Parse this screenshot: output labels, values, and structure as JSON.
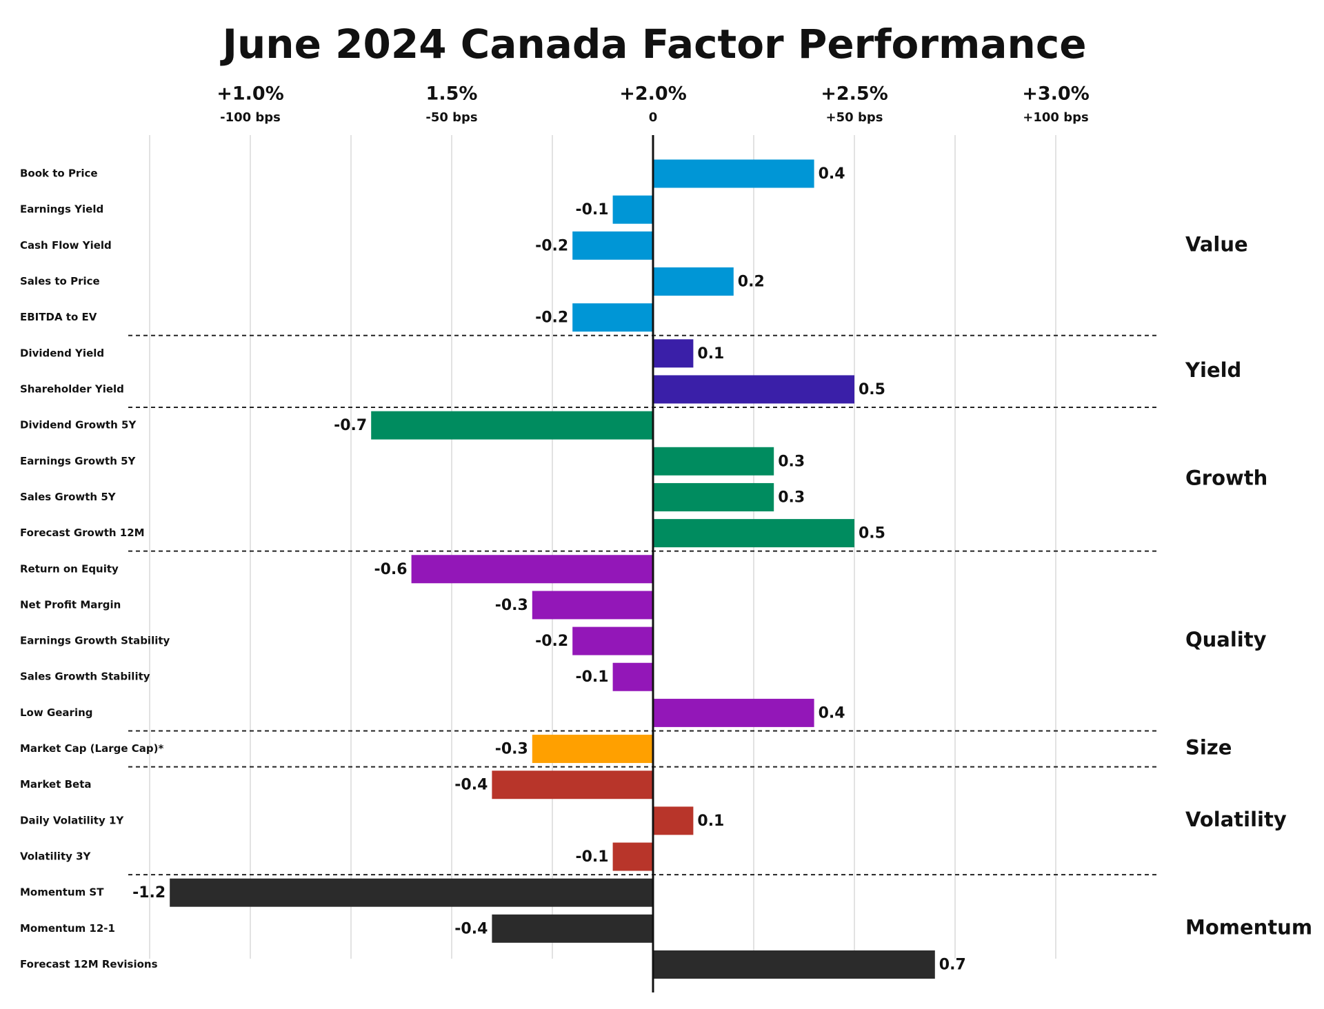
{
  "chart_data": {
    "type": "bar",
    "orientation": "horizontal",
    "title": "June 2024 Canada Factor Performance",
    "xlim": [
      -1.25,
      1.0
    ],
    "xticks": [
      {
        "value": -1,
        "label": "+1.0%"
      },
      {
        "value": -0.5,
        "label": "1.5%"
      },
      {
        "value": 0,
        "label": "+2.0%"
      },
      {
        "value": 0.5,
        "label": "+2.5%"
      },
      {
        "value": 1,
        "label": "+3.0%"
      }
    ],
    "xticks_secondary": [
      {
        "value": -1,
        "label": "-100 bps"
      },
      {
        "value": -0.5,
        "label": "-50 bps"
      },
      0,
      {
        "value": 0.5,
        "label": "+50 bps"
      },
      {
        "value": 1,
        "label": "+100 bps"
      }
    ],
    "xgrid": [
      -1.25,
      -1,
      -0.75,
      -0.5,
      -0.25,
      0.25,
      0.5,
      0.75,
      1
    ],
    "grid": true,
    "groups": [
      {
        "name": "Value",
        "color": "#0096d6",
        "categories": [
          "Book to Price",
          "Earnings Yield",
          "Cash Flow Yield",
          "Sales to Price",
          "EBITDA to EV"
        ],
        "values": [
          0.4,
          -0.1,
          -0.2,
          0.2,
          -0.2
        ]
      },
      {
        "name": "Yield",
        "color": "#3a1fa8",
        "categories": [
          "Dividend Yield",
          "Shareholder Yield"
        ],
        "values": [
          0.1,
          0.5
        ]
      },
      {
        "name": "Growth",
        "color": "#008c5f",
        "categories": [
          "Dividend Growth 5Y",
          "Earnings Growth 5Y",
          "Sales Growth 5Y",
          "Forecast Growth 12M"
        ],
        "values": [
          -0.7,
          0.3,
          0.3,
          0.5
        ]
      },
      {
        "name": "Quality",
        "color": "#9317b8",
        "categories": [
          "Return on Equity",
          "Net Profit Margin",
          "Earnings Growth Stability",
          "Sales Growth Stability",
          "Low Gearing"
        ],
        "values": [
          -0.6,
          -0.3,
          -0.2,
          -0.1,
          0.4
        ]
      },
      {
        "name": "Size",
        "color": "#ffa000",
        "categories": [
          "Market Cap (Large Cap)*"
        ],
        "values": [
          -0.3
        ]
      },
      {
        "name": "Volatility",
        "color": "#b8352a",
        "categories": [
          "Market Beta",
          "Daily Volatility 1Y",
          "Volatility 3Y"
        ],
        "values": [
          -0.4,
          0.1,
          -0.1
        ]
      },
      {
        "name": "Momentum",
        "color": "#2b2b2b",
        "categories": [
          "Momentum ST",
          "Momentum 12-1",
          "Forecast 12M Revisions"
        ],
        "values": [
          -1.2,
          -0.4,
          0.7
        ]
      }
    ]
  }
}
